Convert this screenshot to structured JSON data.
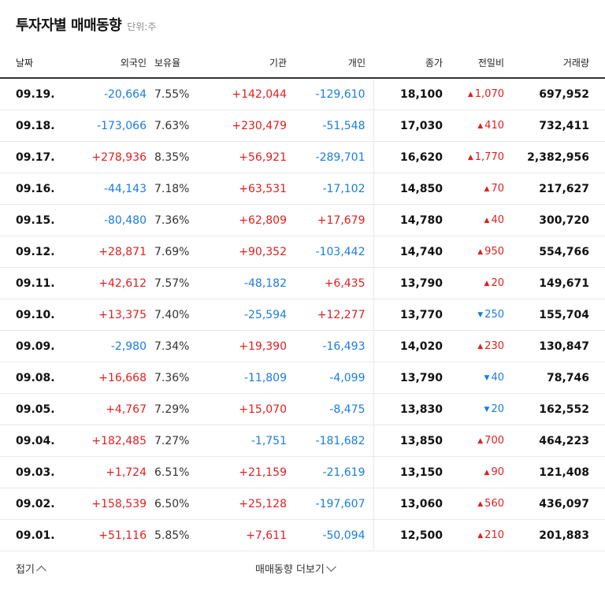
{
  "header": {
    "title": "투자자별 매매동향",
    "unit": "단위:주"
  },
  "columns": [
    "날짜",
    "외국인",
    "보유율",
    "기관",
    "개인",
    "종가",
    "전일비",
    "거래량"
  ],
  "rows": [
    {
      "date": "09.19.",
      "foreign": "-20,664",
      "hold": "7.55%",
      "inst": "+142,044",
      "indiv": "-129,610",
      "close": "18,100",
      "chg_dir": "up",
      "chg": "1,070",
      "vol": "697,952"
    },
    {
      "date": "09.18.",
      "foreign": "-173,066",
      "hold": "7.63%",
      "inst": "+230,479",
      "indiv": "-51,548",
      "close": "17,030",
      "chg_dir": "up",
      "chg": "410",
      "vol": "732,411"
    },
    {
      "date": "09.17.",
      "foreign": "+278,936",
      "hold": "8.35%",
      "inst": "+56,921",
      "indiv": "-289,701",
      "close": "16,620",
      "chg_dir": "up",
      "chg": "1,770",
      "vol": "2,382,956"
    },
    {
      "date": "09.16.",
      "foreign": "-44,143",
      "hold": "7.18%",
      "inst": "+63,531",
      "indiv": "-17,102",
      "close": "14,850",
      "chg_dir": "up",
      "chg": "70",
      "vol": "217,627"
    },
    {
      "date": "09.15.",
      "foreign": "-80,480",
      "hold": "7.36%",
      "inst": "+62,809",
      "indiv": "+17,679",
      "close": "14,780",
      "chg_dir": "up",
      "chg": "40",
      "vol": "300,720"
    },
    {
      "date": "09.12.",
      "foreign": "+28,871",
      "hold": "7.69%",
      "inst": "+90,352",
      "indiv": "-103,442",
      "close": "14,740",
      "chg_dir": "up",
      "chg": "950",
      "vol": "554,766"
    },
    {
      "date": "09.11.",
      "foreign": "+42,612",
      "hold": "7.57%",
      "inst": "-48,182",
      "indiv": "+6,435",
      "close": "13,790",
      "chg_dir": "up",
      "chg": "20",
      "vol": "149,671"
    },
    {
      "date": "09.10.",
      "foreign": "+13,375",
      "hold": "7.40%",
      "inst": "-25,594",
      "indiv": "+12,277",
      "close": "13,770",
      "chg_dir": "down",
      "chg": "250",
      "vol": "155,704"
    },
    {
      "date": "09.09.",
      "foreign": "-2,980",
      "hold": "7.34%",
      "inst": "+19,390",
      "indiv": "-16,493",
      "close": "14,020",
      "chg_dir": "up",
      "chg": "230",
      "vol": "130,847"
    },
    {
      "date": "09.08.",
      "foreign": "+16,668",
      "hold": "7.36%",
      "inst": "-11,809",
      "indiv": "-4,099",
      "close": "13,790",
      "chg_dir": "down",
      "chg": "40",
      "vol": "78,746"
    },
    {
      "date": "09.05.",
      "foreign": "+4,767",
      "hold": "7.29%",
      "inst": "+15,070",
      "indiv": "-8,475",
      "close": "13,830",
      "chg_dir": "down",
      "chg": "20",
      "vol": "162,552"
    },
    {
      "date": "09.04.",
      "foreign": "+182,485",
      "hold": "7.27%",
      "inst": "-1,751",
      "indiv": "-181,682",
      "close": "13,850",
      "chg_dir": "up",
      "chg": "700",
      "vol": "464,223"
    },
    {
      "date": "09.03.",
      "foreign": "+1,724",
      "hold": "6.51%",
      "inst": "+21,159",
      "indiv": "-21,619",
      "close": "13,150",
      "chg_dir": "up",
      "chg": "90",
      "vol": "121,408"
    },
    {
      "date": "09.02.",
      "foreign": "+158,539",
      "hold": "6.50%",
      "inst": "+25,128",
      "indiv": "-197,607",
      "close": "13,060",
      "chg_dir": "up",
      "chg": "560",
      "vol": "436,097"
    },
    {
      "date": "09.01.",
      "foreign": "+51,116",
      "hold": "5.85%",
      "inst": "+7,611",
      "indiv": "-50,094",
      "close": "12,500",
      "chg_dir": "up",
      "chg": "210",
      "vol": "201,883"
    }
  ],
  "footer": {
    "collapse_label": "접기",
    "more_label": "매매동향 더보기"
  },
  "colors": {
    "up": "#e02020",
    "down": "#1a7de0"
  },
  "icons": {
    "up": "triangle-up-icon",
    "down": "triangle-down-icon",
    "collapse": "chevron-up-icon",
    "more": "chevron-down-icon"
  }
}
